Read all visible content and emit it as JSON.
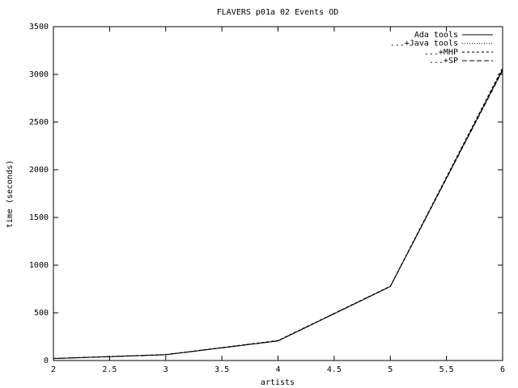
{
  "chart_data": {
    "type": "line",
    "title": "FLAVERS p01a 02 Events OD",
    "x_label": "artists",
    "y_label": "time (seconds)",
    "x": [
      2,
      3,
      4,
      5,
      6
    ],
    "series": [
      {
        "name": "Ada tools",
        "color": "#000000",
        "style": "solid",
        "values": [
          20,
          60,
          205,
          775,
          3050
        ]
      },
      {
        "name": "...+Java tools",
        "color": "#000000",
        "style": "dotted",
        "values": [
          20,
          62,
          208,
          778,
          3060
        ]
      },
      {
        "name": "...+MHP",
        "color": "#000000",
        "style": "dashed",
        "values": [
          22,
          63,
          210,
          780,
          3070
        ]
      },
      {
        "name": "...+SP",
        "color": "#000000",
        "style": "long-dashed",
        "values": [
          21,
          61,
          206,
          776,
          3040
        ]
      }
    ],
    "xlim": [
      2,
      6
    ],
    "xticks": [
      2,
      2.5,
      3,
      3.5,
      4,
      4.5,
      5,
      5.5,
      6
    ],
    "ylim": [
      0,
      3500
    ],
    "yticks": [
      0,
      500,
      1000,
      1500,
      2000,
      2500,
      3000,
      3500
    ],
    "grid": false,
    "legend": "top-right"
  }
}
